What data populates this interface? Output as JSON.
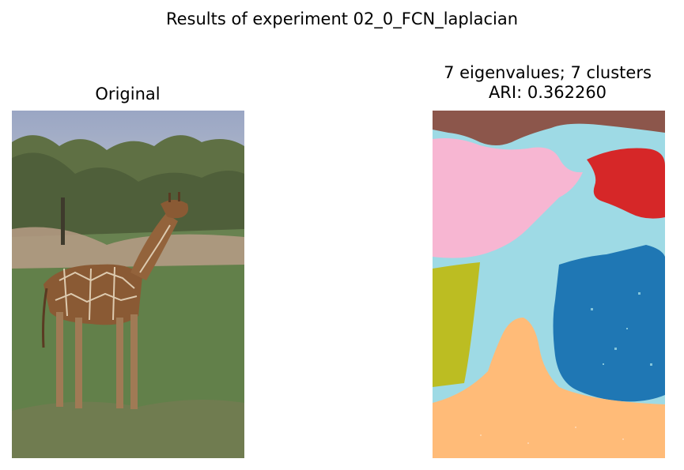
{
  "figure": {
    "suptitle": "Results of experiment 02_0_FCN_laplacian"
  },
  "left_panel": {
    "title": "Original",
    "image_description_icon": "giraffe-photo"
  },
  "right_panel": {
    "title_line1": "7 eigenvalues; 7 clusters",
    "title_line2": "ARI: 0.362260",
    "cluster_colors": [
      "#8c564b",
      "#9edae5",
      "#f7b6d2",
      "#d62728",
      "#1f77b4",
      "#bcbd22",
      "#ffbb78"
    ]
  }
}
